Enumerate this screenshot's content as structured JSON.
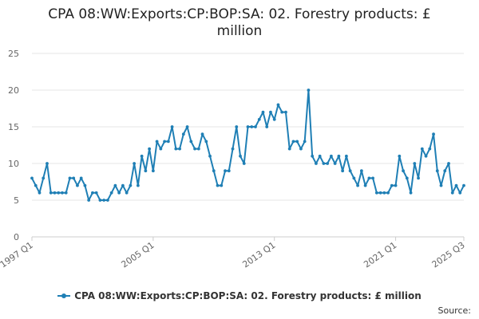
{
  "chart_data": {
    "type": "line",
    "title": "CPA 08:WW:Exports:CP:BOP:SA: 02. Forestry products: £ million",
    "xlabel": "",
    "ylabel": "",
    "ylim": [
      0,
      25
    ],
    "yticks": [
      0,
      5,
      10,
      15,
      20,
      25
    ],
    "grid": true,
    "start": {
      "year": 1997,
      "quarter": 1
    },
    "end": {
      "year": 2025,
      "quarter": 3
    },
    "xtick_labels": [
      "1997 Q1",
      "2005 Q1",
      "2013 Q1",
      "2021 Q1",
      "2025 Q3"
    ],
    "legend_position": "bottom",
    "series": [
      {
        "name": "CPA 08:WW:Exports:CP:BOP:SA: 02. Forestry products: £ million",
        "color": "#1f7fb5",
        "values": [
          8,
          7,
          6,
          8,
          10,
          6,
          6,
          6,
          6,
          6,
          8,
          8,
          7,
          8,
          7,
          5,
          6,
          6,
          5,
          5,
          5,
          6,
          7,
          6,
          7,
          6,
          7,
          10,
          7,
          11,
          9,
          12,
          9,
          13,
          12,
          13,
          13,
          15,
          12,
          12,
          14,
          15,
          13,
          12,
          12,
          14,
          13,
          11,
          9,
          7,
          7,
          9,
          9,
          12,
          15,
          11,
          10,
          15,
          15,
          15,
          16,
          17,
          15,
          17,
          16,
          18,
          17,
          17,
          12,
          13,
          13,
          12,
          13,
          20,
          11,
          10,
          11,
          10,
          10,
          11,
          10,
          11,
          9,
          11,
          9,
          8,
          7,
          9,
          7,
          8,
          8,
          6,
          6,
          6,
          6,
          7,
          7,
          11,
          9,
          8,
          6,
          10,
          8,
          12,
          11,
          12,
          14,
          9,
          7,
          9,
          10,
          6,
          7,
          6,
          7
        ]
      }
    ]
  },
  "legend": {
    "label": "CPA 08:WW:Exports:CP:BOP:SA: 02. Forestry products: £ million"
  },
  "footer": {
    "source_label": "Source:"
  }
}
